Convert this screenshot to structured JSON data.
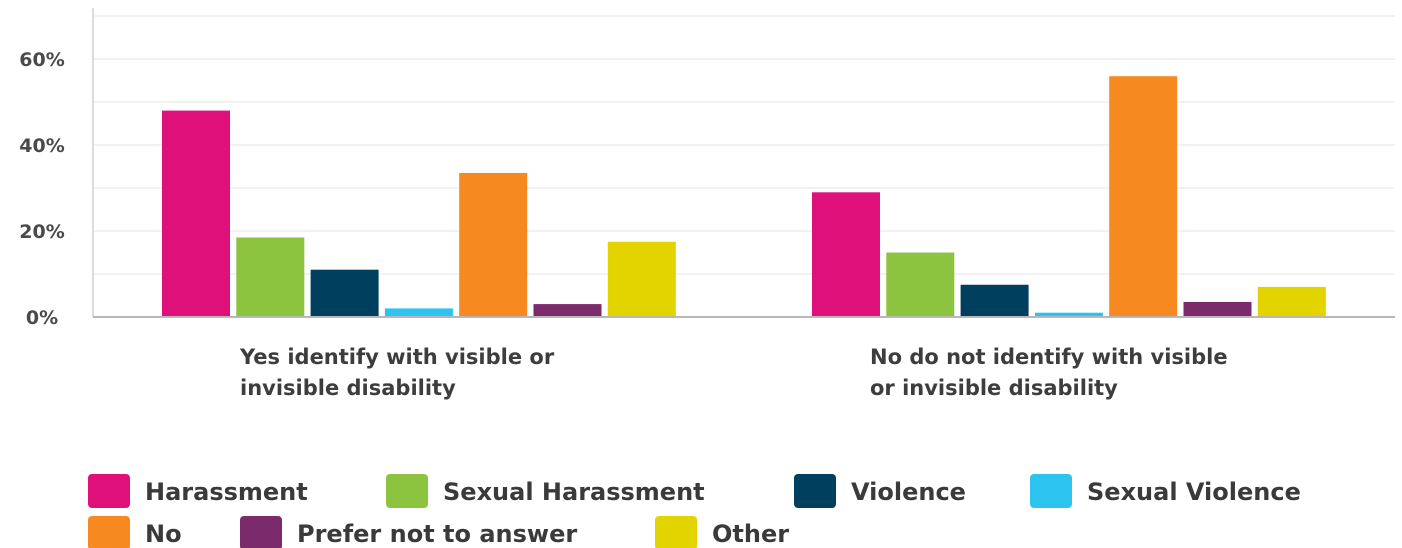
{
  "chart_data": {
    "type": "bar",
    "categories": [
      [
        "Yes identify with visible or",
        "invisible disability"
      ],
      [
        "No do not identify with visible",
        "or invisible disability"
      ]
    ],
    "series": [
      {
        "name": "Harassment",
        "color": "#e0107a",
        "values": [
          48,
          29
        ]
      },
      {
        "name": "Sexual Harassment",
        "color": "#8cc43f",
        "values": [
          18.5,
          15
        ]
      },
      {
        "name": "Violence",
        "color": "#00405e",
        "values": [
          11,
          7.5
        ]
      },
      {
        "name": "Sexual Violence",
        "color": "#2cc3ef",
        "values": [
          2,
          1
        ]
      },
      {
        "name": "No",
        "color": "#f6891f",
        "values": [
          33.5,
          56
        ]
      },
      {
        "name": "Prefer not to answer",
        "color": "#7b2a6b",
        "values": [
          3,
          3.5
        ]
      },
      {
        "name": "Other",
        "color": "#e3d400",
        "values": [
          17.5,
          7
        ]
      }
    ],
    "ylim": [
      0,
      70
    ],
    "yticks": [
      0,
      20,
      40,
      60
    ],
    "ytick_labels": [
      "0%",
      "20%",
      "40%",
      "60%"
    ],
    "grid": true,
    "legend_position": "bottom-left",
    "title": "",
    "xlabel": "",
    "ylabel": ""
  }
}
